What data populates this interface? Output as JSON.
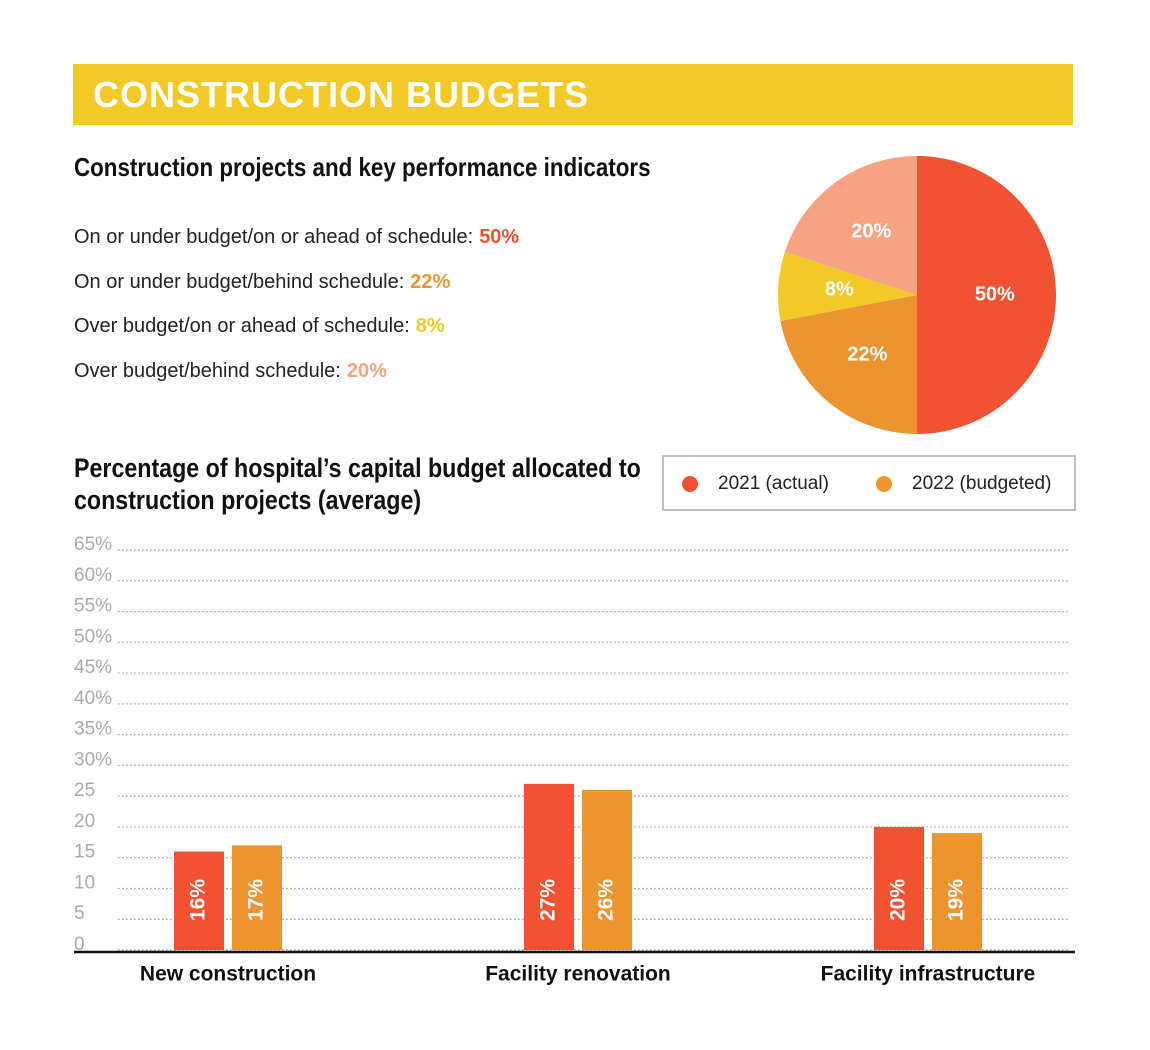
{
  "header": {
    "title": "CONSTRUCTION BUDGETS"
  },
  "chart_data": [
    {
      "type": "pie",
      "title": "Construction projects and key performance indicators",
      "categories": [
        "On or under budget/on or ahead of schedule:",
        "On or under budget/behind schedule:",
        "Over budget/on or ahead of schedule:",
        "Over budget/behind schedule:"
      ],
      "values": [
        50,
        22,
        8,
        20
      ],
      "value_labels": [
        "50%",
        "22%",
        "8%",
        "20%"
      ],
      "colors": [
        "#f05232",
        "#ec9430",
        "#f2c927",
        "#f6a283"
      ]
    },
    {
      "type": "bar",
      "title": "Percentage of hospital’s capital budget allocated to construction projects (average)",
      "categories": [
        "New construction",
        "Facility renovation",
        "Facility infrastructure"
      ],
      "series": [
        {
          "name": "2021 (actual)",
          "color": "#f05232",
          "values": [
            16,
            27,
            20
          ],
          "value_labels": [
            "16%",
            "27%",
            "20%"
          ]
        },
        {
          "name": "2022 (budgeted)",
          "color": "#ec9430",
          "values": [
            17,
            26,
            19
          ],
          "value_labels": [
            "17%",
            "26%",
            "19%"
          ]
        }
      ],
      "ylim": [
        0,
        65
      ],
      "yticks": [
        0,
        5,
        10,
        15,
        20,
        25,
        {
          "value": 30,
          "label": "30%"
        },
        {
          "value": 35,
          "label": "35%"
        },
        {
          "value": 40,
          "label": "40%"
        },
        {
          "value": 45,
          "label": "45%"
        },
        {
          "value": 50,
          "label": "50%"
        },
        {
          "value": 55,
          "label": "55%"
        },
        {
          "value": 60,
          "label": "60%"
        },
        {
          "value": 65,
          "label": "65%"
        }
      ],
      "grid": true
    }
  ]
}
